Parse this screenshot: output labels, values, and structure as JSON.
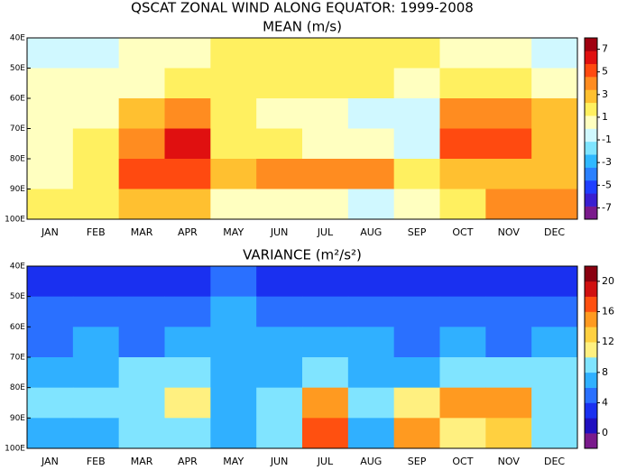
{
  "title": "QSCAT ZONAL WIND ALONG EQUATOR: 1999-2008",
  "chart_data": [
    {
      "type": "heatmap",
      "title": "MEAN (m/s)",
      "categories": [
        "JAN",
        "FEB",
        "MAR",
        "APR",
        "MAY",
        "JUN",
        "JUL",
        "AUG",
        "SEP",
        "OCT",
        "NOV",
        "DEC"
      ],
      "y": [
        45,
        55,
        65,
        75,
        85,
        95
      ],
      "ylim": [
        40,
        100
      ],
      "yticks": [
        {
          "value": 40,
          "label": "40E"
        },
        {
          "value": 50,
          "label": "50E"
        },
        {
          "value": 60,
          "label": "60E"
        },
        {
          "value": 70,
          "label": "70E"
        },
        {
          "value": 80,
          "label": "80E"
        },
        {
          "value": 90,
          "label": "90E"
        },
        {
          "value": 100,
          "label": "100E"
        }
      ],
      "z": [
        [
          -1,
          -1,
          0,
          1,
          2,
          2,
          2,
          2,
          2,
          1,
          0,
          -1
        ],
        [
          0,
          0,
          1,
          2,
          2,
          2,
          2,
          2,
          1,
          2,
          2,
          1
        ],
        [
          0,
          1,
          3,
          4,
          2,
          1,
          0,
          -1,
          -1,
          4,
          4,
          3
        ],
        [
          1,
          2,
          4,
          6,
          2,
          2,
          1,
          0,
          -1,
          5,
          5,
          3
        ],
        [
          1,
          2,
          5,
          5,
          3,
          4,
          4,
          4,
          2,
          3,
          3,
          3
        ],
        [
          2,
          2,
          3,
          3,
          1,
          0,
          1,
          -1,
          0,
          2,
          4,
          4
        ]
      ],
      "zlim": [
        -8,
        8
      ],
      "zticks": [
        -7,
        -5,
        -3,
        -1,
        1,
        3,
        5,
        7
      ],
      "colors": [
        "#7a1a8c",
        "#3a1fd0",
        "#1f3fff",
        "#2a80ff",
        "#30b8ff",
        "#7fe4ff",
        "#d0f8ff",
        "#ffffc0",
        "#fff060",
        "#ffc030",
        "#ff8c20",
        "#ff4a10",
        "#e01010",
        "#a00010"
      ]
    },
    {
      "type": "heatmap",
      "title": "VARIANCE (m²/s²)",
      "categories": [
        "JAN",
        "FEB",
        "MAR",
        "APR",
        "MAY",
        "JUN",
        "JUL",
        "AUG",
        "SEP",
        "OCT",
        "NOV",
        "DEC"
      ],
      "y": [
        45,
        55,
        65,
        75,
        85,
        95
      ],
      "ylim": [
        40,
        100
      ],
      "yticks": [
        {
          "value": 40,
          "label": "40E"
        },
        {
          "value": 50,
          "label": "50E"
        },
        {
          "value": 60,
          "label": "60E"
        },
        {
          "value": 70,
          "label": "70E"
        },
        {
          "value": 80,
          "label": "80E"
        },
        {
          "value": 90,
          "label": "90E"
        },
        {
          "value": 100,
          "label": "100E"
        }
      ],
      "z": [
        [
          2,
          2,
          2,
          2,
          4,
          3,
          2,
          2,
          2,
          2,
          2,
          2
        ],
        [
          4,
          4,
          4,
          4,
          6,
          5,
          4,
          4,
          4,
          4,
          4,
          4
        ],
        [
          5,
          6,
          5,
          6,
          7,
          7,
          6,
          6,
          5,
          6,
          5,
          6
        ],
        [
          6,
          7,
          8,
          8,
          6,
          7,
          9,
          7,
          7,
          9,
          9,
          8
        ],
        [
          8,
          8,
          9,
          10,
          6,
          8,
          14,
          8,
          10,
          14,
          14,
          9
        ],
        [
          6,
          6,
          8,
          8,
          6,
          8,
          16,
          6,
          14,
          10,
          12,
          8
        ]
      ],
      "zlim": [
        -2,
        22
      ],
      "zticks": [
        0,
        4,
        8,
        12,
        16,
        20
      ],
      "colors": [
        "#7a1a8c",
        "#2010c0",
        "#1a30f0",
        "#2a70ff",
        "#30b0ff",
        "#80e4ff",
        "#fff080",
        "#ffd040",
        "#ff9a20",
        "#ff5010",
        "#d01010",
        "#8a0010"
      ]
    }
  ]
}
